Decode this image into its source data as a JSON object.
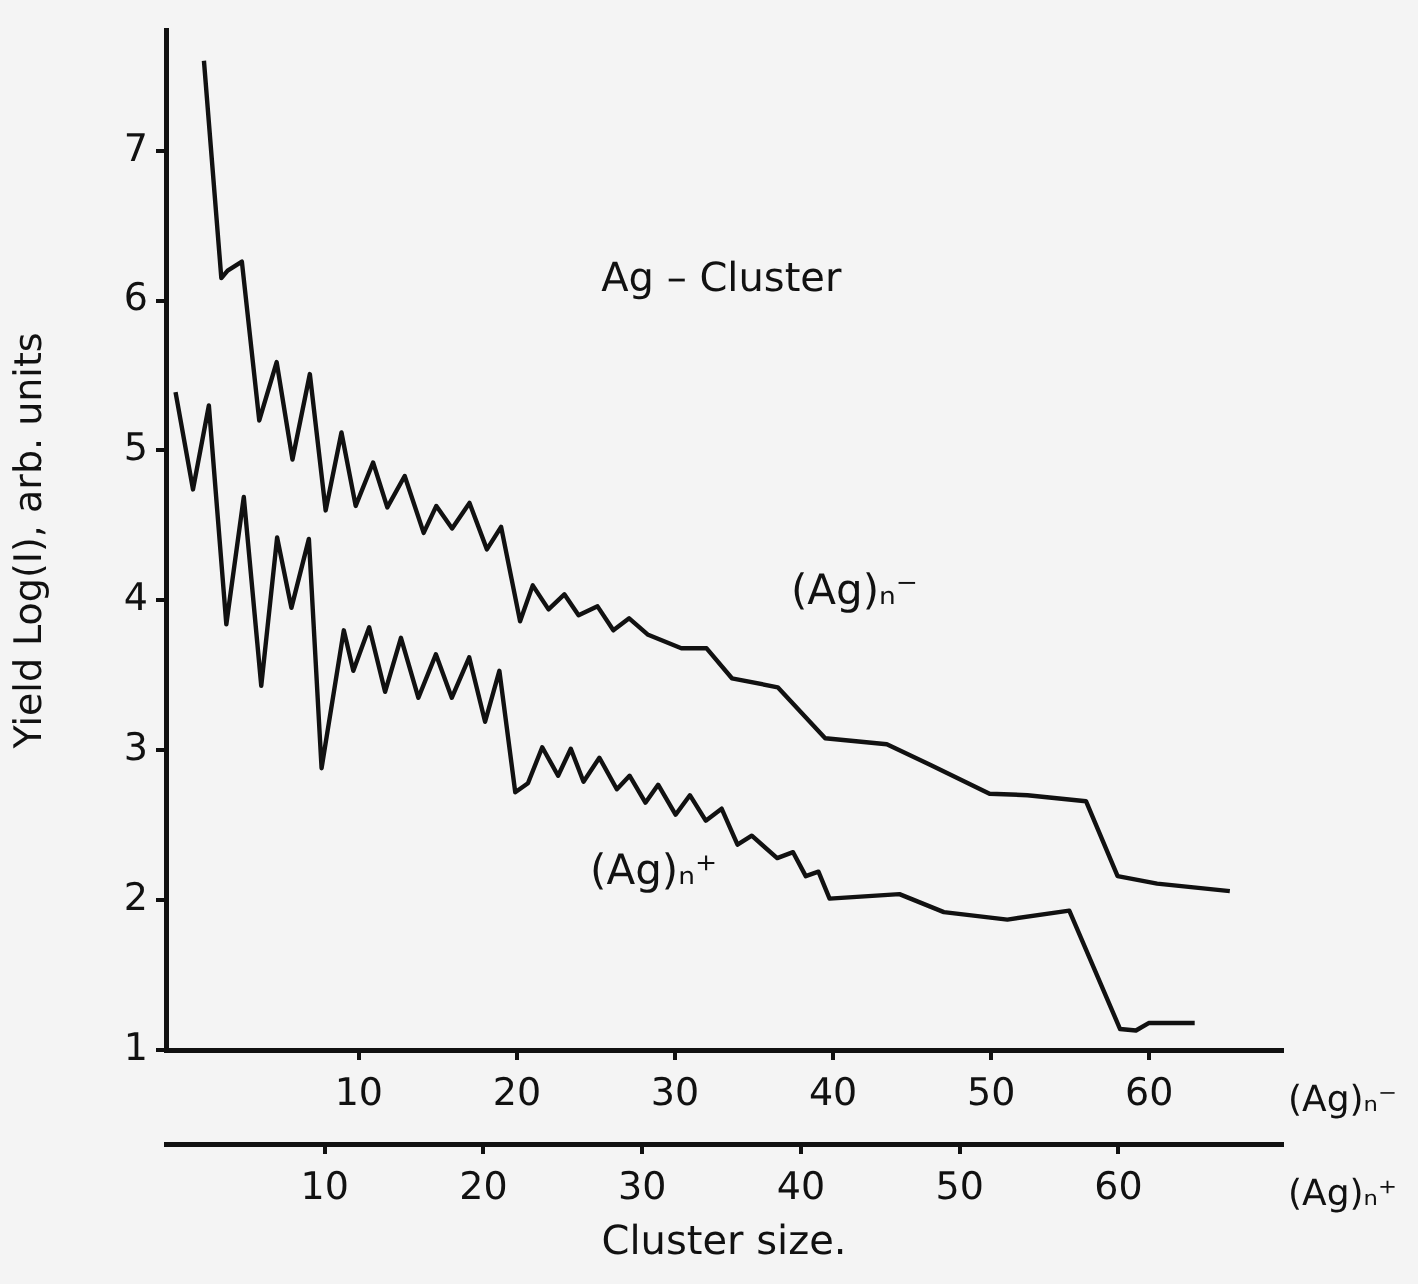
{
  "chart_data": {
    "type": "line",
    "title": "Ag – Cluster",
    "xlabel": "Cluster size.",
    "ylabel": "Yield Log(I), arb. units",
    "xlim": [
      -2.2,
      68.4
    ],
    "xticks": [
      10,
      20,
      30,
      40,
      50,
      60
    ],
    "x2lim": [
      0,
      70.3
    ],
    "x2ticks": [
      10,
      20,
      30,
      40,
      50,
      60
    ],
    "ylim": [
      1,
      7.8
    ],
    "yticks": [
      1,
      2,
      3,
      4,
      5,
      6,
      7
    ],
    "grid": false,
    "legend": false,
    "marker": "none",
    "line_style": "solid",
    "annotations": [
      "(Ag)ₙ⁻",
      "(Ag)ₙ⁺"
    ],
    "series": [
      {
        "name": "(Ag)ₙ⁻",
        "color": "#111111",
        "x": [
          0.2,
          1.3,
          1.7,
          2.6,
          3.7,
          4.8,
          5.8,
          6.9,
          7.9,
          8.9,
          9.8,
          10.9,
          11.8,
          12.9,
          14.1,
          14.9,
          15.9,
          17,
          18.1,
          19,
          20.2,
          21,
          22,
          23,
          23.9,
          25.1,
          26.1,
          27.1,
          28.3,
          30.4,
          32,
          33.6,
          36.5,
          39.5,
          43.4,
          46.2,
          49.9,
          52.3,
          56,
          58,
          60.5,
          65.1
        ],
        "values": [
          7.6,
          6.15,
          6.2,
          6.26,
          5.2,
          5.59,
          4.94,
          5.51,
          4.6,
          5.12,
          4.63,
          4.92,
          4.62,
          4.83,
          4.45,
          4.63,
          4.48,
          4.65,
          4.34,
          4.49,
          3.86,
          4.1,
          3.94,
          4.04,
          3.9,
          3.96,
          3.8,
          3.88,
          3.77,
          3.68,
          3.68,
          3.48,
          3.42,
          3.08,
          3.04,
          2.9,
          2.71,
          2.7,
          2.66,
          2.16,
          2.11,
          2.06
        ]
      },
      {
        "name": "(Ag)ₙ⁺",
        "color": "#111111",
        "axis": "x2",
        "x": [
          0.6,
          1.7,
          2.7,
          3.8,
          4.9,
          6,
          7,
          7.9,
          9,
          9.8,
          11.2,
          11.8,
          12.8,
          13.8,
          14.8,
          15.9,
          17,
          18,
          19.1,
          20.1,
          21,
          22,
          22.8,
          23.7,
          24.7,
          25.5,
          26.3,
          27.3,
          28.4,
          29.2,
          30.2,
          31,
          32.1,
          33,
          34,
          35,
          36,
          36.9,
          38.5,
          39.5,
          40.3,
          41.1,
          41.8,
          46.2,
          49,
          53,
          56.9,
          60.1,
          61.1,
          61.9,
          64.8
        ],
        "values": [
          5.39,
          4.74,
          5.3,
          3.84,
          4.69,
          3.43,
          4.42,
          3.95,
          4.41,
          2.88,
          3.8,
          3.53,
          3.82,
          3.39,
          3.75,
          3.35,
          3.64,
          3.35,
          3.62,
          3.19,
          3.53,
          2.72,
          2.78,
          3.02,
          2.83,
          3.01,
          2.79,
          2.95,
          2.74,
          2.83,
          2.65,
          2.77,
          2.57,
          2.7,
          2.53,
          2.61,
          2.37,
          2.43,
          2.28,
          2.32,
          2.16,
          2.19,
          2.01,
          2.04,
          1.92,
          1.87,
          1.93,
          1.14,
          1.13,
          1.18,
          1.18
        ]
      }
    ]
  }
}
